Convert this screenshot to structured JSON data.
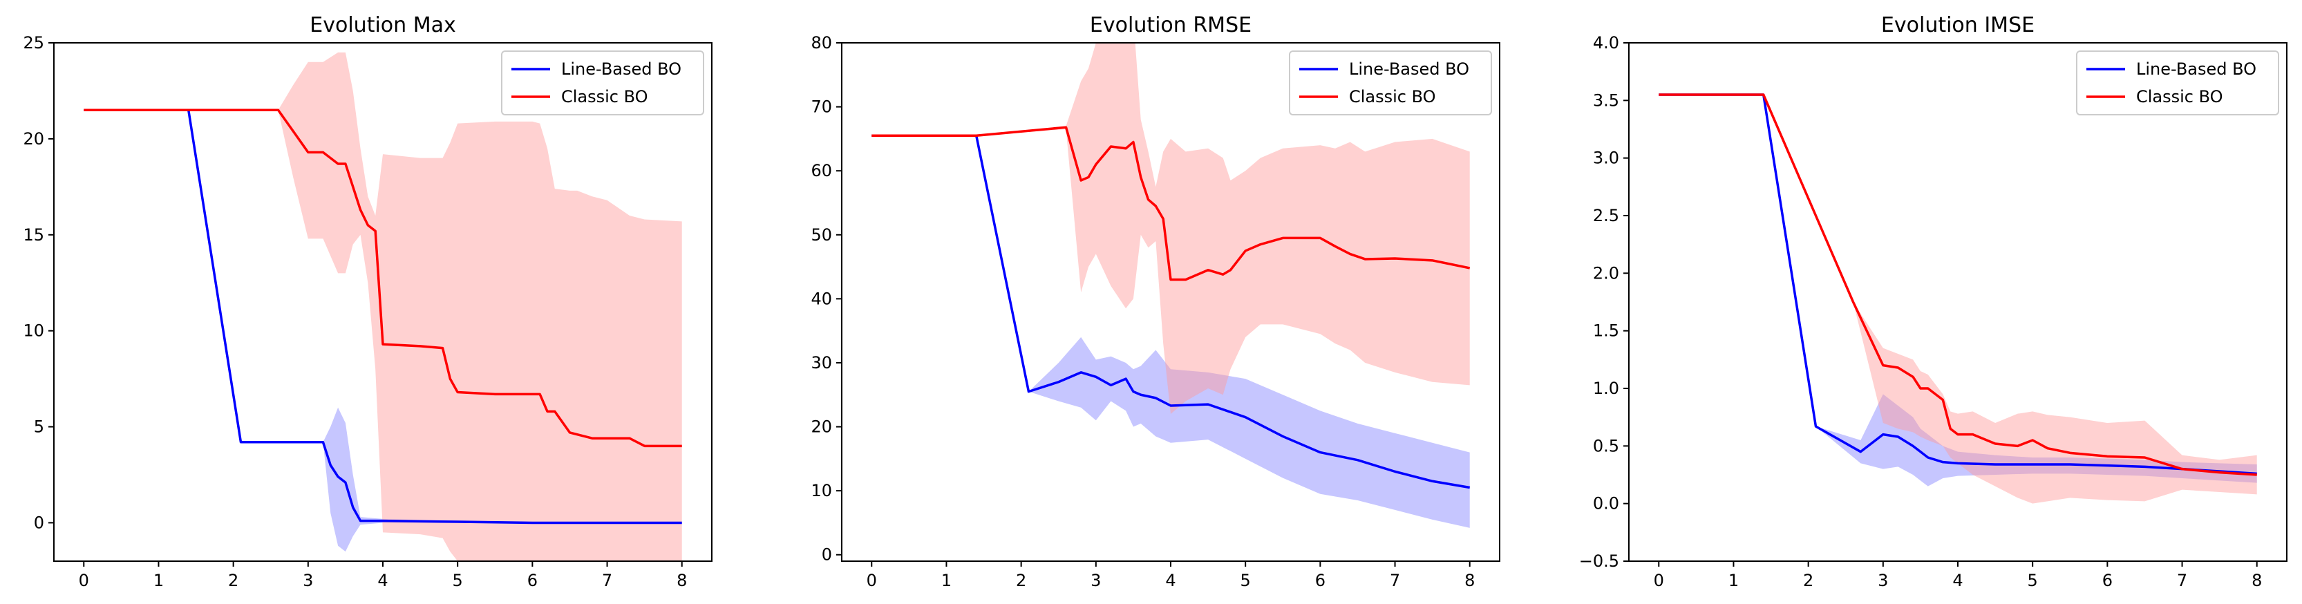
{
  "chart_data": [
    {
      "type": "line",
      "title": "Evolution Max",
      "xlabel": "",
      "ylabel": "",
      "xlim": [
        -0.4,
        8.4
      ],
      "ylim": [
        -2,
        25
      ],
      "xticks": [
        0,
        1,
        2,
        3,
        4,
        5,
        6,
        7,
        8
      ],
      "xtick_labels": [
        "0",
        "1",
        "2",
        "3",
        "4",
        "5",
        "6",
        "7",
        "8"
      ],
      "yticks": [
        0,
        5,
        10,
        15,
        20,
        25
      ],
      "ytick_labels": [
        "0",
        "5",
        "10",
        "15",
        "20",
        "25"
      ],
      "legend_position": "top-right",
      "series": [
        {
          "name": "Line-Based BO",
          "color": "#0000ff",
          "band_color": "#8080ff",
          "x": [
            0,
            1.4,
            2.1,
            2.7,
            3.2,
            3.3,
            3.4,
            3.5,
            3.6,
            3.7,
            4,
            5,
            6,
            7,
            8
          ],
          "y": [
            21.5,
            21.5,
            4.2,
            4.2,
            4.2,
            3.0,
            2.4,
            2.1,
            0.8,
            0.1,
            0.1,
            0.05,
            0,
            0,
            0
          ],
          "upper": [
            21.5,
            21.5,
            4.2,
            4.2,
            4.2,
            5.0,
            6.0,
            5.2,
            2.5,
            0.3,
            0.2,
            0.1,
            0,
            0,
            0
          ],
          "lower": [
            21.5,
            21.5,
            4.2,
            4.2,
            4.2,
            0.5,
            -1.2,
            -1.5,
            -0.7,
            -0.1,
            0,
            0,
            0,
            0,
            0
          ]
        },
        {
          "name": "Classic BO",
          "color": "#ff0000",
          "band_color": "#ff9999",
          "x": [
            0,
            1.4,
            2.0,
            2.6,
            2.8,
            3.0,
            3.2,
            3.4,
            3.5,
            3.6,
            3.7,
            3.8,
            3.9,
            4.0,
            4.5,
            4.8,
            4.9,
            5.0,
            5.5,
            6.0,
            6.1,
            6.2,
            6.3,
            6.5,
            6.6,
            6.8,
            7.0,
            7.3,
            7.5,
            8.0
          ],
          "y": [
            21.5,
            21.5,
            21.5,
            21.5,
            20.4,
            19.3,
            19.3,
            18.7,
            18.7,
            17.5,
            16.3,
            15.5,
            15.2,
            9.3,
            9.2,
            9.1,
            7.5,
            6.8,
            6.7,
            6.7,
            6.7,
            5.8,
            5.8,
            4.7,
            4.6,
            4.4,
            4.4,
            4.4,
            4.0,
            4.0
          ],
          "upper": [
            21.5,
            21.5,
            21.5,
            21.5,
            22.8,
            24.0,
            24.0,
            24.5,
            24.5,
            22.5,
            19.5,
            17.0,
            16.0,
            19.2,
            19.0,
            19.0,
            19.8,
            20.8,
            20.9,
            20.9,
            20.8,
            19.5,
            17.4,
            17.3,
            17.3,
            17.0,
            16.8,
            16.0,
            15.8,
            15.7
          ],
          "lower": [
            21.5,
            21.5,
            21.5,
            21.5,
            18.0,
            14.8,
            14.8,
            13.0,
            13.0,
            14.5,
            15.0,
            12.5,
            8.0,
            -0.5,
            -0.6,
            -0.8,
            -1.5,
            -2.0,
            -2.0,
            -2.0,
            -2.0,
            -2.0,
            -2.0,
            -2.0,
            -2.0,
            -2.0,
            -2.0,
            -2.0,
            -2.0,
            -2.0
          ]
        }
      ]
    },
    {
      "type": "line",
      "title": "Evolution RMSE",
      "xlabel": "",
      "ylabel": "",
      "xlim": [
        -0.4,
        8.4
      ],
      "ylim": [
        -1,
        80
      ],
      "xticks": [
        0,
        1,
        2,
        3,
        4,
        5,
        6,
        7,
        8
      ],
      "xtick_labels": [
        "0",
        "1",
        "2",
        "3",
        "4",
        "5",
        "6",
        "7",
        "8"
      ],
      "yticks": [
        0,
        10,
        20,
        30,
        40,
        50,
        60,
        70,
        80
      ],
      "ytick_labels": [
        "0",
        "10",
        "20",
        "30",
        "40",
        "50",
        "60",
        "70",
        "80"
      ],
      "legend_position": "top-right",
      "series": [
        {
          "name": "Line-Based BO",
          "color": "#0000ff",
          "band_color": "#8080ff",
          "x": [
            0,
            1.4,
            2.1,
            2.5,
            2.8,
            3.0,
            3.2,
            3.4,
            3.5,
            3.6,
            3.8,
            4.0,
            4.5,
            5.0,
            5.5,
            6.0,
            6.5,
            7.0,
            7.5,
            8.0
          ],
          "y": [
            65.5,
            65.5,
            25.5,
            27.0,
            28.5,
            27.8,
            26.5,
            27.5,
            25.5,
            25.0,
            24.5,
            23.3,
            23.5,
            21.5,
            18.5,
            16.0,
            14.8,
            13.0,
            11.5,
            10.5
          ],
          "upper": [
            65.5,
            65.5,
            25.5,
            30.0,
            34.0,
            30.5,
            31.0,
            30.0,
            29.0,
            29.5,
            32.0,
            29.0,
            28.5,
            27.5,
            25.0,
            22.5,
            20.5,
            19.0,
            17.5,
            16.0
          ],
          "lower": [
            65.5,
            65.5,
            25.5,
            24.0,
            23.0,
            21.0,
            24.0,
            22.5,
            20.0,
            20.5,
            18.5,
            17.5,
            18.0,
            15.0,
            12.0,
            9.5,
            8.5,
            7.0,
            5.5,
            4.2
          ]
        },
        {
          "name": "Classic BO",
          "color": "#ff0000",
          "band_color": "#ff9999",
          "x": [
            0,
            1.4,
            2.6,
            2.8,
            2.9,
            3.0,
            3.2,
            3.4,
            3.5,
            3.6,
            3.7,
            3.8,
            3.9,
            4.0,
            4.2,
            4.5,
            4.7,
            4.8,
            5.0,
            5.2,
            5.5,
            6.0,
            6.2,
            6.4,
            6.6,
            7.0,
            7.5,
            8.0
          ],
          "y": [
            65.5,
            65.5,
            66.8,
            58.5,
            59.0,
            61.0,
            63.8,
            63.5,
            64.5,
            59.0,
            55.5,
            54.5,
            52.5,
            43.0,
            43.0,
            44.5,
            43.8,
            44.5,
            47.5,
            48.5,
            49.5,
            49.5,
            48.2,
            47.0,
            46.2,
            46.3,
            46.0,
            44.8
          ],
          "upper": [
            65.5,
            65.5,
            67.0,
            74.0,
            76.0,
            80.0,
            82.0,
            84.0,
            84.0,
            68.0,
            63.0,
            57.5,
            63.0,
            65.0,
            63.0,
            63.5,
            62.0,
            58.5,
            60.0,
            62.0,
            63.5,
            64.0,
            63.5,
            64.5,
            63.0,
            64.5,
            65.0,
            63.0
          ],
          "lower": [
            65.5,
            65.5,
            66.5,
            41.0,
            45.0,
            47.0,
            42.0,
            38.5,
            40.0,
            50.0,
            48.0,
            49.0,
            33.0,
            22.0,
            24.0,
            26.0,
            25.0,
            29.0,
            34.0,
            36.0,
            36.0,
            34.5,
            33.0,
            32.0,
            30.0,
            28.5,
            27.0,
            26.5
          ]
        }
      ]
    },
    {
      "type": "line",
      "title": "Evolution IMSE",
      "xlabel": "",
      "ylabel": "",
      "xlim": [
        -0.4,
        8.4
      ],
      "ylim": [
        -0.5,
        4.0
      ],
      "xticks": [
        0,
        1,
        2,
        3,
        4,
        5,
        6,
        7,
        8
      ],
      "xtick_labels": [
        "0",
        "1",
        "2",
        "3",
        "4",
        "5",
        "6",
        "7",
        "8"
      ],
      "yticks": [
        -0.5,
        0.0,
        0.5,
        1.0,
        1.5,
        2.0,
        2.5,
        3.0,
        3.5,
        4.0
      ],
      "ytick_labels": [
        "−0.5",
        "0.0",
        "0.5",
        "1.0",
        "1.5",
        "2.0",
        "2.5",
        "3.0",
        "3.5",
        "4.0"
      ],
      "legend_position": "top-right",
      "series": [
        {
          "name": "Line-Based BO",
          "color": "#0000ff",
          "band_color": "#8080ff",
          "x": [
            0,
            1.4,
            2.1,
            2.7,
            3.0,
            3.2,
            3.4,
            3.5,
            3.6,
            3.8,
            4.0,
            4.5,
            5.0,
            5.5,
            6.0,
            6.5,
            7.0,
            7.5,
            8.0
          ],
          "y": [
            3.55,
            3.55,
            0.67,
            0.45,
            0.6,
            0.58,
            0.5,
            0.45,
            0.4,
            0.36,
            0.35,
            0.34,
            0.34,
            0.34,
            0.33,
            0.32,
            0.3,
            0.28,
            0.26
          ],
          "upper": [
            3.55,
            3.55,
            0.67,
            0.55,
            0.95,
            0.85,
            0.75,
            0.65,
            0.6,
            0.5,
            0.45,
            0.42,
            0.4,
            0.4,
            0.39,
            0.38,
            0.36,
            0.35,
            0.34
          ],
          "lower": [
            3.55,
            3.55,
            0.67,
            0.35,
            0.3,
            0.32,
            0.25,
            0.2,
            0.15,
            0.22,
            0.24,
            0.25,
            0.26,
            0.26,
            0.25,
            0.24,
            0.22,
            0.2,
            0.18
          ]
        },
        {
          "name": "Classic BO",
          "color": "#ff0000",
          "band_color": "#ff9999",
          "x": [
            0,
            1.4,
            2.6,
            3.0,
            3.2,
            3.4,
            3.5,
            3.6,
            3.8,
            3.9,
            4.0,
            4.2,
            4.5,
            4.8,
            5.0,
            5.2,
            5.5,
            6.0,
            6.5,
            7.0,
            7.5,
            8.0
          ],
          "y": [
            3.55,
            3.55,
            1.75,
            1.2,
            1.18,
            1.1,
            1.0,
            1.0,
            0.9,
            0.65,
            0.6,
            0.6,
            0.52,
            0.5,
            0.55,
            0.48,
            0.44,
            0.41,
            0.4,
            0.3,
            0.27,
            0.25
          ],
          "upper": [
            3.55,
            3.55,
            1.75,
            1.35,
            1.3,
            1.25,
            1.15,
            1.12,
            0.95,
            0.8,
            0.78,
            0.8,
            0.7,
            0.78,
            0.8,
            0.77,
            0.75,
            0.7,
            0.72,
            0.42,
            0.38,
            0.42
          ],
          "lower": [
            3.55,
            3.55,
            1.75,
            0.7,
            0.65,
            0.62,
            0.58,
            0.55,
            0.5,
            0.4,
            0.35,
            0.25,
            0.15,
            0.05,
            0.0,
            0.02,
            0.05,
            0.03,
            0.02,
            0.12,
            0.1,
            0.08
          ]
        }
      ]
    }
  ]
}
